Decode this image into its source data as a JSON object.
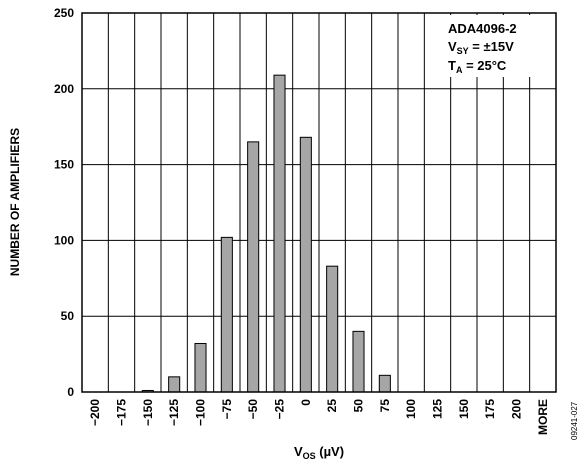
{
  "chart_data": {
    "type": "bar",
    "categories": [
      "−200",
      "−175",
      "−150",
      "−125",
      "−100",
      "−75",
      "−50",
      "−25",
      "0",
      "25",
      "50",
      "75",
      "100",
      "125",
      "150",
      "175",
      "200",
      "MORE"
    ],
    "values": [
      0,
      0,
      1,
      10,
      32,
      102,
      165,
      209,
      168,
      83,
      40,
      11,
      0,
      0,
      0,
      0,
      0,
      0
    ],
    "ylim": [
      0,
      250
    ],
    "yticks": [
      0,
      50,
      100,
      150,
      200,
      250
    ],
    "ylabel": "NUMBER OF AMPLIFIERS",
    "xlabel": {
      "main": "V",
      "sub": "OS",
      "unit": " (µV)"
    },
    "grid": true,
    "annotation": {
      "line1": "ADA4096-2",
      "line2": {
        "main": "V",
        "sub": "SY",
        "rest": " = ±15V"
      },
      "line3": {
        "main": "T",
        "sub": "A",
        "rest": " = 25°C"
      },
      "placement": "top-right"
    },
    "figure_id": "09241-027",
    "colors": {
      "bar_fill": "#a6a6a6",
      "bar_stroke": "#000000",
      "grid": "#000000"
    }
  }
}
